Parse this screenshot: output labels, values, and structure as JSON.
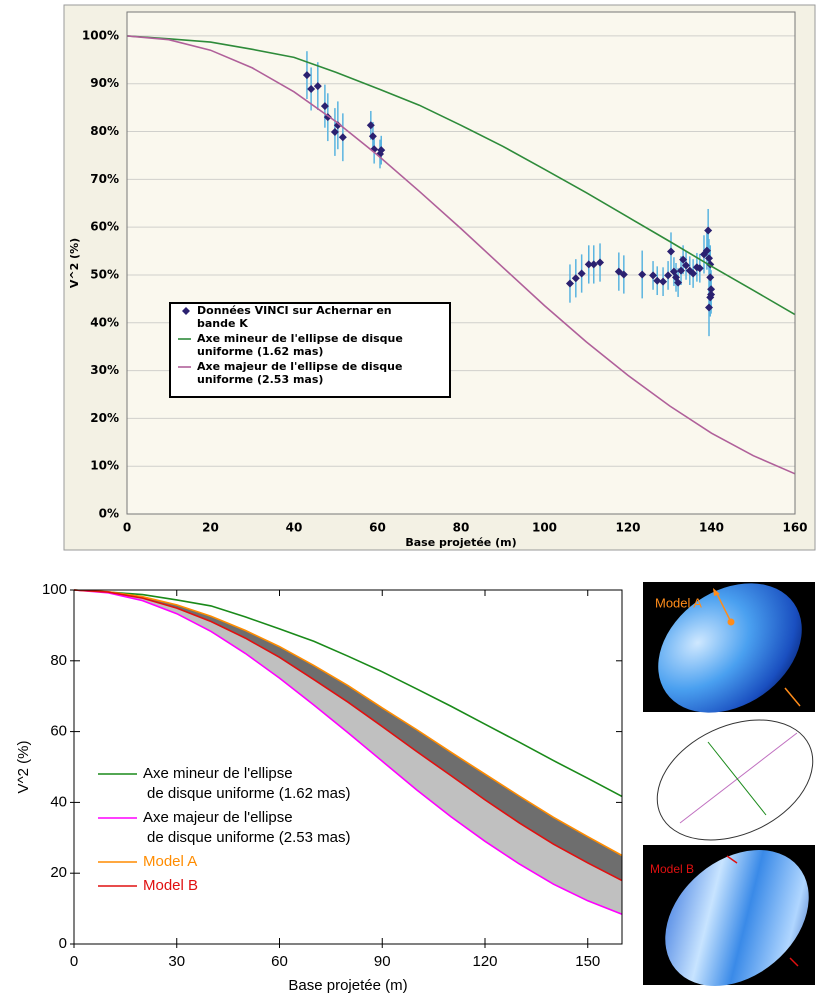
{
  "chart_data": [
    {
      "type": "line",
      "xlabel": "Base projetée (m)",
      "ylabel": "V^2 (%)",
      "xlim": [
        0,
        160
      ],
      "ylim": [
        0,
        105
      ],
      "xticks": [
        0,
        20,
        40,
        60,
        80,
        100,
        120,
        140,
        160
      ],
      "yticks": [
        {
          "value": 0,
          "label": "0%"
        },
        {
          "value": 10,
          "label": "10%"
        },
        {
          "value": 20,
          "label": "20%"
        },
        {
          "value": 30,
          "label": "30%"
        },
        {
          "value": 40,
          "label": "40%"
        },
        {
          "value": 50,
          "label": "50%"
        },
        {
          "value": 60,
          "label": "60%"
        },
        {
          "value": 70,
          "label": "70%"
        },
        {
          "value": 80,
          "label": "80%"
        },
        {
          "value": 90,
          "label": "90%"
        },
        {
          "value": 100,
          "label": "100%"
        }
      ],
      "grid": true,
      "legend": "lower left",
      "x": [
        0,
        10,
        20,
        30,
        40,
        50,
        60,
        70,
        80,
        90,
        100,
        110,
        120,
        130,
        140,
        150,
        160
      ],
      "series": [
        {
          "name": "Données VINCI sur Achernar en bande K",
          "type": "scatter",
          "color": "#2b2170",
          "error_color": "#5ab4e0",
          "x": [
            43.1,
            44.1,
            45.7,
            47.4,
            48.1,
            49.8,
            50.5,
            51.7,
            58.4,
            58.9,
            59.2,
            60.6,
            60.9,
            106.1,
            107.5,
            108.9,
            110.6,
            111.8,
            113.3,
            117.8,
            119.0,
            123.4,
            126.0,
            127.0,
            128.4,
            129.6,
            130.3,
            131.0,
            131.5,
            132.0,
            132.7,
            133.2,
            133.9,
            134.8,
            135.6,
            136.5,
            137.2,
            138.2,
            138.9,
            139.2,
            139.4,
            139.7,
            139.7,
            139.9,
            139.7,
            139.4,
            139.9
          ],
          "values": [
            91.8,
            88.9,
            89.5,
            85.3,
            83.0,
            79.9,
            81.3,
            78.8,
            81.3,
            79.0,
            76.3,
            75.3,
            76.1,
            48.2,
            49.3,
            50.3,
            52.2,
            52.2,
            52.6,
            50.7,
            50.1,
            50.1,
            49.9,
            48.8,
            48.6,
            49.9,
            54.9,
            50.7,
            49.5,
            48.4,
            50.9,
            53.2,
            52.0,
            50.9,
            50.3,
            51.6,
            51.4,
            54.3,
            55.1,
            59.3,
            53.5,
            52.2,
            49.5,
            47.0,
            45.3,
            43.2,
            45.9
          ],
          "errors": [
            5,
            4.5,
            5,
            4.5,
            5,
            5,
            5,
            5,
            3,
            3,
            3,
            3,
            3,
            4,
            4,
            4,
            4,
            4,
            4,
            4,
            4,
            5,
            3,
            3,
            3,
            3,
            4,
            3,
            3,
            3,
            3,
            3,
            3,
            3,
            3,
            3,
            3,
            4,
            4,
            4.5,
            4,
            4,
            4,
            4,
            4,
            6,
            4
          ]
        },
        {
          "name": "Axe mineur de l'ellipse de disque uniforme (1.62 mas)",
          "type": "line",
          "color": "#2e8b3a",
          "values": [
            100,
            99.4,
            98.7,
            97.2,
            95.5,
            92.4,
            89.0,
            85.5,
            81.3,
            76.9,
            72.1,
            67.2,
            62.1,
            57.0,
            51.8,
            46.8,
            41.7
          ]
        },
        {
          "name": "Axe majeur de l'ellipse de disque uniforme (2.53 mas)",
          "type": "line",
          "color": "#b0609a",
          "values": [
            100,
            99.2,
            97.0,
            93.3,
            88.3,
            82.1,
            75.1,
            67.5,
            59.7,
            51.6,
            43.6,
            36.0,
            29.0,
            22.6,
            16.9,
            12.2,
            8.4
          ]
        }
      ]
    },
    {
      "type": "line",
      "xlabel": "Base projetée (m)",
      "ylabel": "V^2 (%)",
      "xlim": [
        0,
        160
      ],
      "ylim": [
        0,
        100
      ],
      "xticks": [
        0,
        30,
        60,
        90,
        120,
        150
      ],
      "yticks": [
        0,
        20,
        40,
        60,
        80,
        100
      ],
      "grid": false,
      "legend": "lower left",
      "x": [
        0,
        10,
        20,
        30,
        40,
        50,
        60,
        70,
        80,
        90,
        100,
        110,
        120,
        130,
        140,
        150,
        160
      ],
      "series": [
        {
          "name": "Axe mineur de l'ellipse de disque uniforme (1.62 mas)",
          "type": "line",
          "color": "#1a8a1a",
          "values": [
            100,
            99.4,
            98.7,
            97.2,
            95.5,
            92.4,
            89.0,
            85.5,
            81.3,
            76.9,
            72.1,
            67.2,
            62.1,
            57.0,
            51.8,
            46.8,
            41.7
          ]
        },
        {
          "name": "Axe majeur de l'ellipse de disque uniforme (2.53 mas)",
          "type": "line",
          "color": "#ff00ff",
          "values": [
            100,
            99.2,
            97.0,
            93.3,
            88.3,
            82.1,
            75.1,
            67.5,
            59.7,
            51.6,
            43.6,
            36.0,
            29.0,
            22.6,
            16.9,
            12.2,
            8.4
          ]
        },
        {
          "name": "Model A",
          "type": "line",
          "color": "#ff8c00",
          "values": [
            100,
            99.5,
            98.1,
            95.8,
            92.6,
            88.6,
            84.0,
            78.7,
            73.0,
            66.7,
            60.6,
            54.2,
            48.0,
            41.8,
            35.8,
            30.3,
            25.0
          ]
        },
        {
          "name": "Model B",
          "type": "line",
          "color": "#e01010",
          "values": [
            100,
            99.4,
            97.7,
            94.9,
            91.1,
            86.4,
            81.0,
            74.7,
            68.3,
            61.4,
            54.4,
            47.6,
            40.7,
            34.2,
            28.2,
            22.9,
            17.9
          ]
        }
      ]
    }
  ],
  "side_panels": {
    "model_a": "Model A",
    "model_b": "Model B"
  }
}
